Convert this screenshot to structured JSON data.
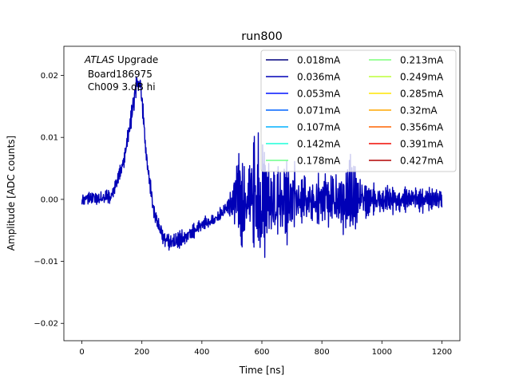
{
  "chart_data": {
    "type": "line",
    "title": "run800",
    "xlabel": "Time [ns]",
    "ylabel": "Amplitude [ADC counts]",
    "xlim": [
      -60,
      1260
    ],
    "ylim": [
      -0.0228,
      0.0247
    ],
    "xticks": [
      0,
      200,
      400,
      600,
      800,
      1000,
      1200
    ],
    "yticks": [
      -0.02,
      -0.01,
      0.0,
      0.01,
      0.02
    ],
    "xtick_labels": [
      "0",
      "200",
      "400",
      "600",
      "800",
      "1000",
      "1200"
    ],
    "ytick_labels": [
      "−0.02",
      "−0.01",
      "0.00",
      "0.01",
      "0.02"
    ],
    "annotation": {
      "line1_italic": "ATLAS",
      "line1_rest": " Upgrade",
      "line2": " Board186975",
      "line3": " Ch009 3.dB hi"
    },
    "legend": {
      "position": "top-right",
      "columns": 2,
      "entries": [
        {
          "label": "0.018mA",
          "color": "#00007f"
        },
        {
          "label": "0.036mA",
          "color": "#0000b6"
        },
        {
          "label": "0.053mA",
          "color": "#0014ff"
        },
        {
          "label": "0.071mA",
          "color": "#0064ff"
        },
        {
          "label": "0.107mA",
          "color": "#00b0ff"
        },
        {
          "label": "0.142mA",
          "color": "#1cffda"
        },
        {
          "label": "0.178mA",
          "color": "#6dff8a"
        },
        {
          "label": "0.213mA",
          "color": "#7dff7a"
        },
        {
          "label": "0.249mA",
          "color": "#bdff39"
        },
        {
          "label": "0.285mA",
          "color": "#ffe600"
        },
        {
          "label": "0.32mA",
          "color": "#ffa700"
        },
        {
          "label": "0.356mA",
          "color": "#ff6400"
        },
        {
          "label": "0.391mA",
          "color": "#f10800"
        },
        {
          "label": "0.427mA",
          "color": "#b20000"
        }
      ]
    },
    "series": [
      {
        "color": "#0000b6",
        "x_range": [
          0,
          1200
        ],
        "samples": 1000,
        "envelope": {
          "x": [
            0,
            100,
            140,
            170,
            185,
            195,
            215,
            240,
            270,
            300,
            350,
            400,
            450,
            490,
            510,
            530,
            560,
            590,
            600,
            620,
            650,
            700,
            750,
            800,
            850,
            880,
            900,
            920,
            950,
            1000,
            1100,
            1200
          ],
          "mean": [
            0.0,
            0.0005,
            0.006,
            0.015,
            0.019,
            0.019,
            0.007,
            -0.002,
            -0.006,
            -0.007,
            -0.006,
            -0.004,
            -0.003,
            -0.001,
            0.0,
            0.0,
            0.0,
            0.0,
            0.0,
            0.0,
            0.0,
            0.0,
            0.0,
            0.0,
            0.0,
            0.0,
            0.0,
            0.0,
            0.0,
            0.0,
            0.0,
            0.0
          ],
          "amplitude": [
            0.0015,
            0.0017,
            0.002,
            0.0025,
            0.003,
            0.003,
            0.002,
            0.002,
            0.002,
            0.002,
            0.0018,
            0.0016,
            0.0015,
            0.002,
            0.008,
            0.012,
            0.01,
            0.016,
            0.018,
            0.01,
            0.009,
            0.008,
            0.006,
            0.006,
            0.006,
            0.01,
            0.011,
            0.005,
            0.004,
            0.003,
            0.003,
            0.0025
          ]
        }
      }
    ]
  }
}
